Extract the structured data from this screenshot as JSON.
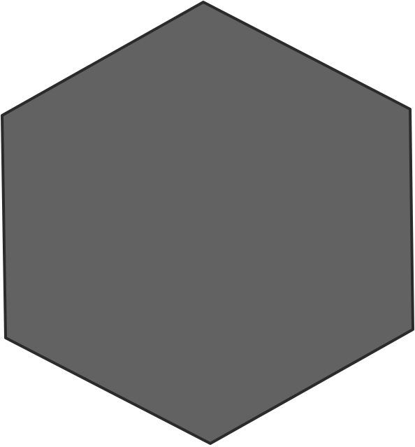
{
  "shape": {
    "type": "hexagon",
    "fill": "#626262",
    "stroke": "#2b2b2b"
  }
}
